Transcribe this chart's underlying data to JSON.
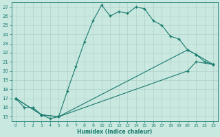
{
  "xlabel": "Humidex (Indice chaleur)",
  "xlim": [
    -0.5,
    23.5
  ],
  "ylim": [
    14.5,
    27.5
  ],
  "xticks": [
    0,
    1,
    2,
    3,
    4,
    5,
    6,
    7,
    8,
    9,
    10,
    11,
    12,
    13,
    14,
    15,
    16,
    17,
    18,
    19,
    20,
    21,
    22,
    23
  ],
  "yticks": [
    15,
    16,
    17,
    18,
    19,
    20,
    21,
    22,
    23,
    24,
    25,
    26,
    27
  ],
  "line_color": "#1a7a6e",
  "bg_color": "#c8e8e0",
  "grid_color": "#b0d0c8",
  "line1_x": [
    0,
    1,
    2,
    3,
    4,
    5,
    6,
    7,
    8,
    9,
    10,
    11,
    12,
    13,
    14,
    15,
    16,
    17,
    18,
    19,
    20,
    21,
    22,
    23
  ],
  "line1_y": [
    17,
    16,
    16,
    15.2,
    14.8,
    15.0,
    17.8,
    20.5,
    23.2,
    25.5,
    27.2,
    26.0,
    26.5,
    26.3,
    27.0,
    26.8,
    25.5,
    25.0,
    23.8,
    23.5,
    22.3,
    21.8,
    21.0,
    20.7
  ],
  "line2_x": [
    0,
    3,
    5,
    20,
    21,
    23
  ],
  "line2_y": [
    17,
    15.2,
    15.0,
    22.3,
    21.8,
    20.7
  ],
  "line3_x": [
    0,
    3,
    5,
    20,
    21,
    23
  ],
  "line3_y": [
    17,
    15.2,
    15.0,
    20.0,
    21.0,
    20.7
  ]
}
